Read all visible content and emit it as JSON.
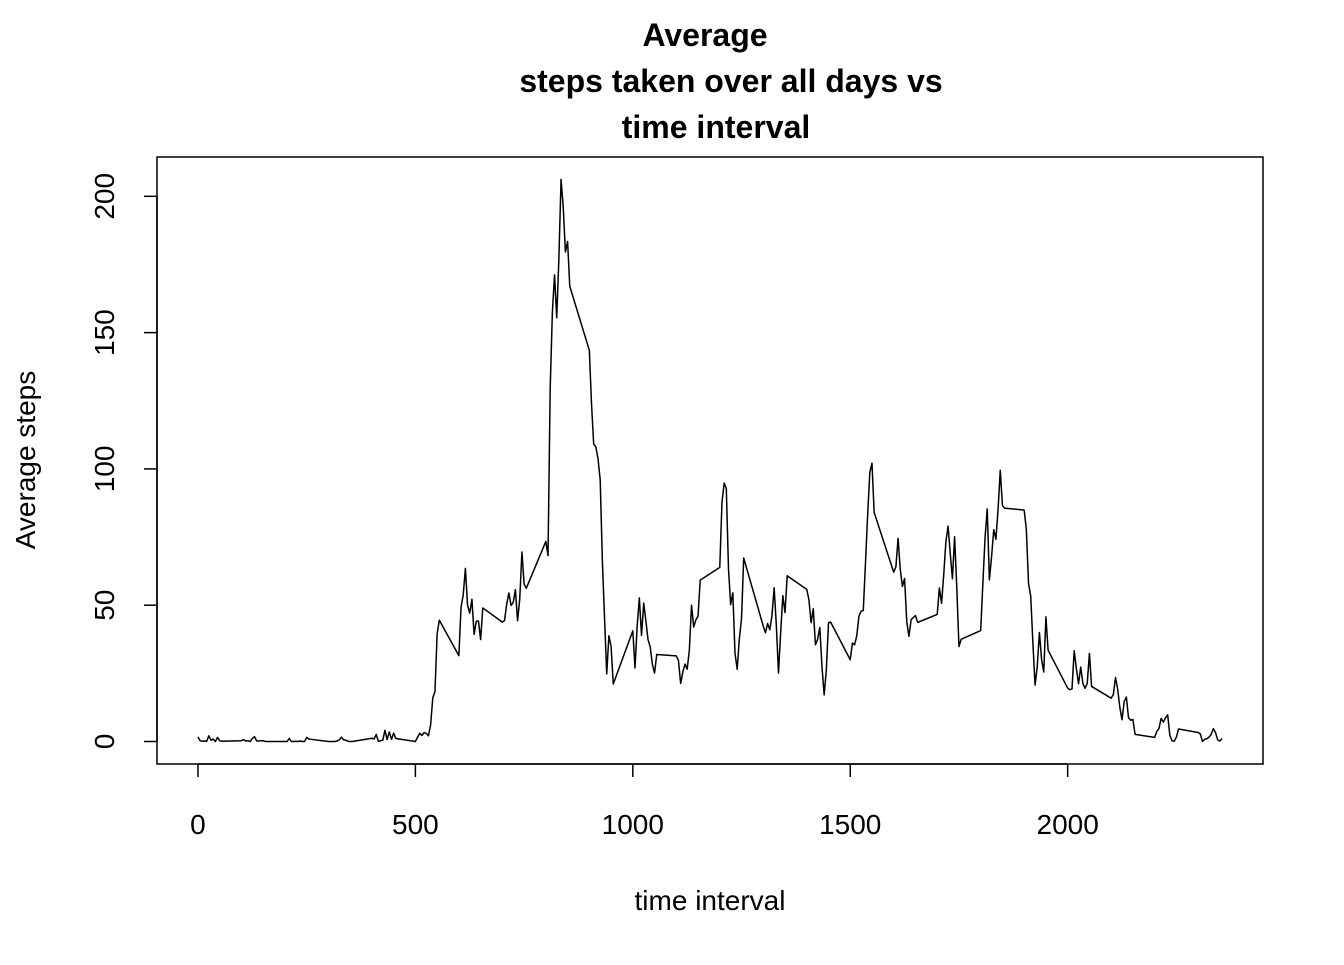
{
  "chart_data": {
    "type": "line",
    "title": [
      "Average",
      "steps taken over all days vs",
      "time interval"
    ],
    "x_label": "time interval",
    "y_label": "Average steps",
    "color": "#000000",
    "xlim": [
      -94.2,
      2449.2
    ],
    "xticks": [
      0,
      500,
      1000,
      1500,
      2000
    ],
    "ylim": [
      -8.25,
      214.42
    ],
    "yticks": [
      0,
      50,
      100,
      150,
      200
    ],
    "grid": false,
    "x": [
      0,
      5,
      10,
      15,
      20,
      25,
      30,
      35,
      40,
      45,
      50,
      55,
      100,
      105,
      110,
      115,
      120,
      125,
      130,
      135,
      140,
      145,
      150,
      155,
      200,
      205,
      210,
      215,
      220,
      225,
      230,
      235,
      240,
      245,
      250,
      255,
      300,
      305,
      310,
      315,
      320,
      325,
      330,
      335,
      340,
      345,
      350,
      355,
      400,
      405,
      410,
      415,
      420,
      425,
      430,
      435,
      440,
      445,
      450,
      455,
      500,
      505,
      510,
      515,
      520,
      525,
      530,
      535,
      540,
      545,
      550,
      555,
      600,
      605,
      610,
      615,
      620,
      625,
      630,
      635,
      640,
      645,
      650,
      655,
      700,
      705,
      710,
      715,
      720,
      725,
      730,
      735,
      740,
      745,
      750,
      755,
      800,
      805,
      810,
      815,
      820,
      825,
      830,
      835,
      840,
      845,
      850,
      855,
      900,
      905,
      910,
      915,
      920,
      925,
      930,
      935,
      940,
      945,
      950,
      955,
      1000,
      1005,
      1010,
      1015,
      1020,
      1025,
      1030,
      1035,
      1040,
      1045,
      1050,
      1055,
      1100,
      1105,
      1110,
      1115,
      1120,
      1125,
      1130,
      1135,
      1140,
      1145,
      1150,
      1155,
      1200,
      1205,
      1210,
      1215,
      1220,
      1225,
      1230,
      1235,
      1240,
      1245,
      1250,
      1255,
      1300,
      1305,
      1310,
      1315,
      1320,
      1325,
      1330,
      1335,
      1340,
      1345,
      1350,
      1355,
      1400,
      1405,
      1410,
      1415,
      1420,
      1425,
      1430,
      1435,
      1440,
      1445,
      1450,
      1455,
      1500,
      1505,
      1510,
      1515,
      1520,
      1525,
      1530,
      1535,
      1540,
      1545,
      1550,
      1555,
      1600,
      1605,
      1610,
      1615,
      1620,
      1625,
      1630,
      1635,
      1640,
      1645,
      1650,
      1655,
      1700,
      1705,
      1710,
      1715,
      1720,
      1725,
      1730,
      1735,
      1740,
      1745,
      1750,
      1755,
      1800,
      1805,
      1810,
      1815,
      1820,
      1825,
      1830,
      1835,
      1840,
      1845,
      1850,
      1855,
      1900,
      1905,
      1910,
      1915,
      1920,
      1925,
      1930,
      1935,
      1940,
      1945,
      1950,
      1955,
      2000,
      2005,
      2010,
      2015,
      2020,
      2025,
      2030,
      2035,
      2040,
      2045,
      2050,
      2055,
      2100,
      2105,
      2110,
      2115,
      2120,
      2125,
      2130,
      2135,
      2140,
      2145,
      2150,
      2155,
      2200,
      2205,
      2210,
      2215,
      2220,
      2225,
      2230,
      2235,
      2240,
      2245,
      2250,
      2255,
      2300,
      2305,
      2310,
      2315,
      2320,
      2325,
      2330,
      2335,
      2340,
      2345,
      2350,
      2355
    ],
    "values": [
      1.7,
      0.3,
      0.1,
      0.2,
      0.1,
      2.1,
      0.5,
      0.9,
      0,
      1.5,
      0.3,
      0.1,
      0.3,
      0.7,
      0.2,
      0.3,
      0,
      1.1,
      1.8,
      0.2,
      0.2,
      0.3,
      0.3,
      0,
      0,
      0,
      1.1,
      0,
      0,
      0.1,
      0,
      0.2,
      0,
      0,
      1.5,
      0.9,
      0,
      0,
      0,
      0,
      0.2,
      0.6,
      1.6,
      0.6,
      0.5,
      0.1,
      0,
      0,
      1.2,
      0.9,
      2.6,
      0,
      0.3,
      0.5,
      4.1,
      0.7,
      3.5,
      0.8,
      3.1,
      1.1,
      0,
      1.6,
      3,
      2.2,
      3.3,
      3,
      2.1,
      6.1,
      16,
      18.3,
      39.5,
      44.5,
      31.5,
      49.3,
      53.8,
      63.5,
      50,
      47.1,
      52.2,
      39.3,
      44.1,
      44.2,
      37.4,
      49,
      43.8,
      44.4,
      50.5,
      54.5,
      49.9,
      51,
      55.7,
      44.3,
      52.3,
      69.5,
      57.8,
      56.2,
      73.4,
      68.2,
      129.4,
      157.5,
      171.2,
      155.4,
      177.3,
      206.2,
      195.9,
      179.6,
      183.4,
      167,
      143.5,
      124,
      109.1,
      108.1,
      103.7,
      96,
      66.2,
      45.2,
      24.8,
      38.8,
      35,
      21.1,
      40.6,
      27,
      42.4,
      52.7,
      38.9,
      50.8,
      44.3,
      37.4,
      34.7,
      28.3,
      25.1,
      31.9,
      31.4,
      29.7,
      21.3,
      25.5,
      28.4,
      26.5,
      33.4,
      50,
      42,
      44.6,
      46,
      59.2,
      63.9,
      87.7,
      94.8,
      92.8,
      63.4,
      50.2,
      54.5,
      32.4,
      26.5,
      37.7,
      45.1,
      67.3,
      42.3,
      39.9,
      43.3,
      41,
      46.2,
      56.4,
      42.8,
      25.1,
      40,
      53.5,
      47.3,
      60.8,
      55.8,
      52,
      43.6,
      48.7,
      35.5,
      37.5,
      41.8,
      27.5,
      17.1,
      26.1,
      43.6,
      43.8,
      30,
      36.1,
      35.5,
      38.8,
      46,
      47.8,
      48.1,
      65.3,
      82.9,
      98.7,
      102.1,
      84,
      62.1,
      64.1,
      74.5,
      63.2,
      56.9,
      59.8,
      43.9,
      38.6,
      44.7,
      45.5,
      46.2,
      43.7,
      46.6,
      56.3,
      50.7,
      61.2,
      73.4,
      79,
      68.9,
      59.7,
      75.1,
      56.5,
      34.8,
      37.5,
      40.7,
      58,
      74.7,
      85.3,
      59.3,
      67.8,
      77.7,
      74.2,
      85.3,
      99.5,
      86.6,
      85.6,
      84.9,
      77.8,
      58,
      53.4,
      36.3,
      20.7,
      27.4,
      40,
      30.2,
      25.5,
      45.7,
      33.5,
      19.6,
      19,
      19.3,
      33.3,
      26.8,
      21.2,
      27.3,
      21.3,
      19.5,
      21.3,
      32.3,
      20.2,
      15.9,
      17.2,
      23.5,
      19.2,
      12.5,
      8,
      14.7,
      16.3,
      8.7,
      7.8,
      8.1,
      2.6,
      1.5,
      3.7,
      4.8,
      8.5,
      7.1,
      8.7,
      9.8,
      2.2,
      0.3,
      0.1,
      1.6,
      4.6,
      3.3,
      2.8,
      0,
      0.8,
      1,
      1.6,
      2.6,
      4.7,
      3.3,
      0.6,
      0.2,
      1.1
    ]
  }
}
